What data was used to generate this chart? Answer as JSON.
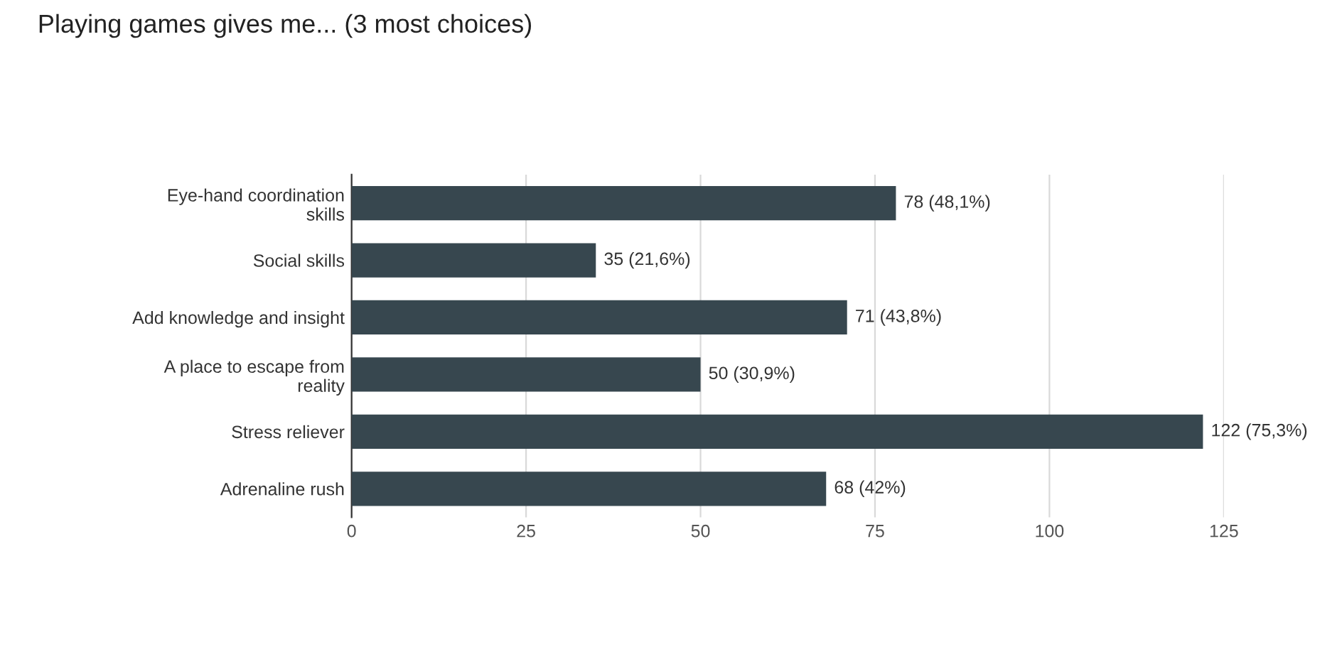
{
  "chart_data": {
    "type": "bar",
    "orientation": "horizontal",
    "title": "Playing games gives me... (3 most choices)",
    "categories": [
      "Eye-hand coordination\nskills",
      "Social skills",
      "Add knowledge and insight",
      "A place to escape from\nreality",
      "Stress reliever",
      "Adrenaline rush"
    ],
    "values": [
      78,
      35,
      71,
      50,
      122,
      68
    ],
    "value_labels": [
      "78 (48,1%)",
      "35 (21,6%)",
      "71 (43,8%)",
      "50 (30,9%)",
      "122 (75,3%)",
      "68 (42%)"
    ],
    "color": "#37474f",
    "xlim": [
      0,
      125
    ],
    "xticks": [
      0,
      25,
      50,
      75,
      100,
      125
    ],
    "grid": "x"
  }
}
